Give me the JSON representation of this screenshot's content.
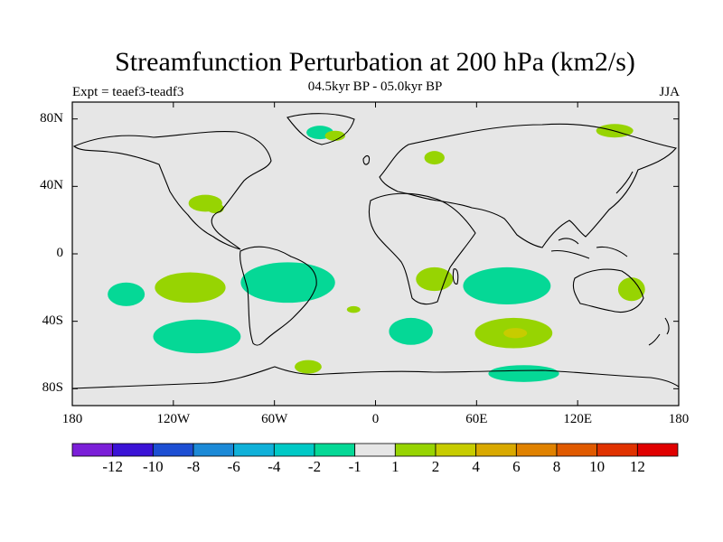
{
  "title": "Streamfunction Perturbation at 200 hPa (km2/s)",
  "subtitle": "04.5kyr BP - 05.0kyr BP",
  "left_label": "Expt = teaef3-teadf3",
  "right_label": "JJA",
  "axes": {
    "lon_range": [
      -180,
      180
    ],
    "lat_range": [
      -90,
      90
    ],
    "x_ticks": [
      {
        "value": -180,
        "label": "180"
      },
      {
        "value": -120,
        "label": "120W"
      },
      {
        "value": -60,
        "label": "60W"
      },
      {
        "value": 0,
        "label": "0"
      },
      {
        "value": 60,
        "label": "60E"
      },
      {
        "value": 120,
        "label": "120E"
      },
      {
        "value": 180,
        "label": "180"
      }
    ],
    "y_ticks": [
      {
        "value": 80,
        "label": "80N"
      },
      {
        "value": 40,
        "label": "40N"
      },
      {
        "value": 0,
        "label": "0"
      },
      {
        "value": -40,
        "label": "40S"
      },
      {
        "value": -80,
        "label": "80S"
      }
    ]
  },
  "colorbar": {
    "colors": [
      "#7b1fd8",
      "#3b13d6",
      "#1d4fd3",
      "#1c8ad7",
      "#10b1d9",
      "#00c9c6",
      "#05d896",
      "#e6e6e6",
      "#97d402",
      "#c7cc00",
      "#d9a900",
      "#e08200",
      "#e05a00",
      "#e03200",
      "#e00000"
    ],
    "labels": [
      "-12",
      "-10",
      "-8",
      "-6",
      "-4",
      "-2",
      "-1",
      "1",
      "2",
      "4",
      "6",
      "8",
      "10",
      "12"
    ]
  },
  "chart_data": {
    "type": "contour-map",
    "variable": "Streamfunction Perturbation at 200 hPa",
    "units": "km2/s",
    "season": "JJA",
    "regions": [
      {
        "lon": -148,
        "lat": -24,
        "rlon": 11,
        "rlat": 7,
        "level": "-2 to -1"
      },
      {
        "lon": -110,
        "lat": -20,
        "rlon": 21,
        "rlat": 9,
        "level": "1 to 2"
      },
      {
        "lon": -106,
        "lat": -49,
        "rlon": 26,
        "rlat": 10,
        "level": "-2 to -1"
      },
      {
        "lon": -52,
        "lat": -17,
        "rlon": 28,
        "rlat": 12,
        "level": "-2 to -1"
      },
      {
        "lon": -101,
        "lat": 30,
        "rlon": 10,
        "rlat": 5,
        "level": "1 to 2"
      },
      {
        "lon": -95,
        "lat": 27,
        "rlon": 5,
        "rlat": 3,
        "level": "1 to 2"
      },
      {
        "lon": -33,
        "lat": 72,
        "rlon": 8,
        "rlat": 4,
        "level": "-2 to -1"
      },
      {
        "lon": -24,
        "lat": 70,
        "rlon": 6,
        "rlat": 3,
        "level": "1 to 2"
      },
      {
        "lon": 35,
        "lat": 57,
        "rlon": 6,
        "rlat": 4,
        "level": "1 to 2"
      },
      {
        "lon": 142,
        "lat": 73,
        "rlon": 11,
        "rlat": 4,
        "level": "1 to 2"
      },
      {
        "lon": 35,
        "lat": -15,
        "rlon": 11,
        "rlat": 7,
        "level": "1 to 2"
      },
      {
        "lon": 21,
        "lat": -46,
        "rlon": 13,
        "rlat": 8,
        "level": "-2 to -1"
      },
      {
        "lon": -13,
        "lat": -33,
        "rlon": 4,
        "rlat": 2,
        "level": "1 to 2"
      },
      {
        "lon": 78,
        "lat": -19,
        "rlon": 26,
        "rlat": 11,
        "level": "-2 to -1"
      },
      {
        "lon": 152,
        "lat": -21,
        "rlon": 8,
        "rlat": 7,
        "level": "1 to 2"
      },
      {
        "lon": 82,
        "lat": -47,
        "rlon": 23,
        "rlat": 9,
        "level": "1 to 2"
      },
      {
        "lon": 83,
        "lat": -47,
        "rlon": 7,
        "rlat": 3,
        "level": "2 to 4"
      },
      {
        "lon": 88,
        "lat": -71,
        "rlon": 21,
        "rlat": 5,
        "level": "-2 to -1"
      },
      {
        "lon": -40,
        "lat": -67,
        "rlon": 8,
        "rlat": 4,
        "level": "1 to 2"
      }
    ]
  }
}
